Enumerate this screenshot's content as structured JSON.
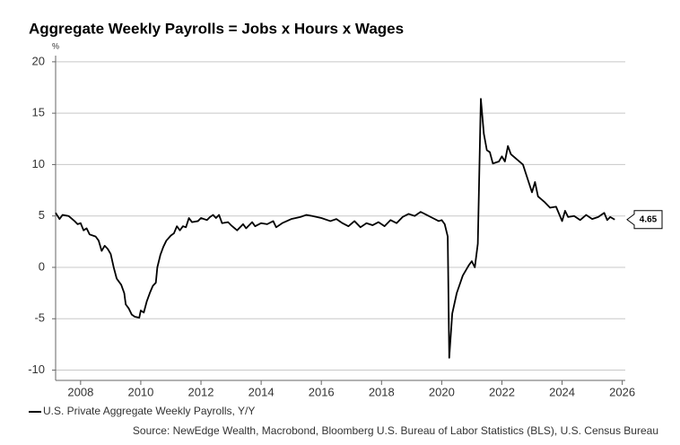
{
  "chart_data": {
    "type": "line",
    "title": "Aggregate Weekly Payrolls = Jobs x Hours x Wages",
    "y_unit": "%",
    "source": "Source: NewEdge Wealth, Macrobond, Bloomberg U.S. Bureau of Labor Statistics (BLS), U.S. Census Bureau",
    "xlim": [
      2007.17,
      2026.1
    ],
    "xticks": [
      2008,
      2010,
      2012,
      2014,
      2016,
      2018,
      2020,
      2022,
      2024,
      2026
    ],
    "ylim": [
      -11,
      20.6
    ],
    "yticks": [
      -10,
      -5,
      0,
      5,
      10,
      15,
      20
    ],
    "grid": true,
    "x": [
      2007.17,
      2007.3,
      2007.4,
      2007.6,
      2007.8,
      2007.9,
      2008.0,
      2008.1,
      2008.2,
      2008.3,
      2008.5,
      2008.6,
      2008.7,
      2008.8,
      2008.9,
      2009.0,
      2009.1,
      2009.2,
      2009.35,
      2009.45,
      2009.5,
      2009.6,
      2009.7,
      2009.8,
      2009.95,
      2010.0,
      2010.1,
      2010.2,
      2010.3,
      2010.4,
      2010.5,
      2010.55,
      2010.65,
      2010.75,
      2010.85,
      2011.0,
      2011.1,
      2011.2,
      2011.3,
      2011.4,
      2011.5,
      2011.6,
      2011.7,
      2011.9,
      2012.0,
      2012.2,
      2012.3,
      2012.4,
      2012.5,
      2012.6,
      2012.7,
      2012.9,
      2013.0,
      2013.2,
      2013.4,
      2013.5,
      2013.7,
      2013.8,
      2014.0,
      2014.2,
      2014.4,
      2014.5,
      2014.7,
      2015.0,
      2015.3,
      2015.5,
      2015.7,
      2016.0,
      2016.3,
      2016.5,
      2016.7,
      2016.9,
      2017.1,
      2017.3,
      2017.5,
      2017.7,
      2017.9,
      2018.1,
      2018.3,
      2018.5,
      2018.7,
      2018.9,
      2019.1,
      2019.3,
      2019.5,
      2019.7,
      2019.9,
      2020.0,
      2020.1,
      2020.2,
      2020.25,
      2020.35,
      2020.5,
      2020.7,
      2020.9,
      2021.0,
      2021.1,
      2021.2,
      2021.3,
      2021.4,
      2021.5,
      2021.6,
      2021.7,
      2021.9,
      2022.0,
      2022.1,
      2022.2,
      2022.3,
      2022.5,
      2022.7,
      2022.8,
      2023.0,
      2023.1,
      2023.2,
      2023.4,
      2023.6,
      2023.8,
      2024.0,
      2024.1,
      2024.2,
      2024.4,
      2024.6,
      2024.8,
      2025.0,
      2025.2,
      2025.4,
      2025.5,
      2025.6,
      2025.75
    ],
    "series": [
      {
        "name": "U.S. Private Aggregate Weekly Payrolls, Y/Y",
        "color": "#000000",
        "values": [
          5.3,
          4.7,
          5.1,
          5.0,
          4.5,
          4.2,
          4.3,
          3.6,
          3.8,
          3.2,
          3.0,
          2.6,
          1.6,
          2.1,
          1.8,
          1.3,
          0.0,
          -1.1,
          -1.7,
          -2.5,
          -3.6,
          -4.0,
          -4.6,
          -4.8,
          -4.9,
          -4.2,
          -4.4,
          -3.3,
          -2.5,
          -1.8,
          -1.5,
          0.0,
          1.2,
          2.0,
          2.6,
          3.1,
          3.3,
          4.0,
          3.6,
          4.0,
          3.9,
          4.8,
          4.4,
          4.5,
          4.8,
          4.6,
          4.9,
          5.1,
          4.8,
          5.1,
          4.3,
          4.4,
          4.1,
          3.6,
          4.2,
          3.8,
          4.4,
          4.0,
          4.3,
          4.2,
          4.5,
          3.9,
          4.3,
          4.7,
          4.9,
          5.1,
          5.0,
          4.8,
          4.5,
          4.7,
          4.3,
          4.0,
          4.5,
          3.9,
          4.3,
          4.1,
          4.4,
          4.0,
          4.6,
          4.3,
          4.9,
          5.2,
          5.0,
          5.4,
          5.1,
          4.8,
          4.5,
          4.6,
          4.2,
          3.0,
          -8.8,
          -4.5,
          -2.5,
          -0.8,
          0.2,
          0.6,
          0.0,
          2.3,
          16.4,
          13.0,
          11.4,
          11.2,
          10.1,
          10.3,
          10.8,
          10.3,
          11.8,
          11.0,
          10.5,
          10.0,
          9.1,
          7.3,
          8.3,
          6.9,
          6.4,
          5.8,
          5.9,
          4.5,
          5.5,
          4.9,
          5.0,
          4.6,
          5.1,
          4.7,
          4.9,
          5.3,
          4.6,
          4.9,
          4.65
        ]
      }
    ]
  }
}
